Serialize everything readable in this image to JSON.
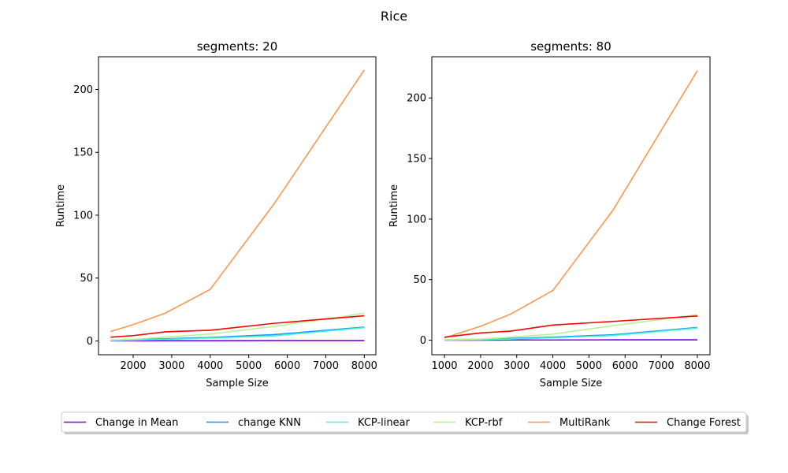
{
  "figure": {
    "suptitle": "Rice"
  },
  "legend": {
    "placement": "bottom-center",
    "entries": [
      "Change in Mean",
      "change KNN",
      "KCP-linear",
      "KCP-rbf",
      "MultiRank",
      "Change Forest"
    ]
  },
  "colors": {
    "Change in Mean": "#7f00ff",
    "change KNN": "#1996f3",
    "KCP-linear": "#4df3ce",
    "KCP-rbf": "#b2f396",
    "MultiRank": "#ff964f",
    "Change Forest": "#ff0000"
  },
  "chart_data": [
    {
      "type": "line",
      "title": "segments: 20",
      "xlabel": "Sample Size",
      "ylabel": "Runtime",
      "xlim": [
        1100,
        8300
      ],
      "ylim": [
        -11,
        226
      ],
      "xticks": [
        2000,
        3000,
        4000,
        5000,
        6000,
        7000,
        8000
      ],
      "yticks": [
        0,
        50,
        100,
        150,
        200
      ],
      "grid": false,
      "x": [
        1414,
        2000,
        2828,
        4000,
        5657,
        8000
      ],
      "series": [
        {
          "name": "Change in Mean",
          "values": [
            0.1,
            0.1,
            0.2,
            0.2,
            0.3,
            0.3
          ]
        },
        {
          "name": "change KNN",
          "values": [
            0.5,
            1.0,
            1.7,
            2.8,
            5.0,
            11.0
          ]
        },
        {
          "name": "KCP-linear",
          "values": [
            0.3,
            0.6,
            1.2,
            2.3,
            4.0,
            10.5
          ]
        },
        {
          "name": "KCP-rbf",
          "values": [
            0.6,
            1.3,
            3.0,
            5.5,
            11.5,
            22.0
          ]
        },
        {
          "name": "MultiRank",
          "values": [
            7.5,
            13.0,
            22.0,
            41.0,
            109.0,
            215.5
          ]
        },
        {
          "name": "Change Forest",
          "values": [
            3.0,
            4.2,
            7.2,
            8.5,
            14.0,
            20.0
          ]
        }
      ]
    },
    {
      "type": "line",
      "title": "segments: 80",
      "xlabel": "Sample Size",
      "ylabel": "Runtime",
      "xlim": [
        650,
        8350
      ],
      "ylim": [
        -12,
        234
      ],
      "xticks": [
        1000,
        2000,
        3000,
        4000,
        5000,
        6000,
        7000,
        8000
      ],
      "yticks": [
        0,
        50,
        100,
        150,
        200
      ],
      "grid": false,
      "x": [
        1000,
        2000,
        2828,
        4000,
        5657,
        8000
      ],
      "series": [
        {
          "name": "Change in Mean",
          "values": [
            0.1,
            0.1,
            0.2,
            0.2,
            0.3,
            0.3
          ]
        },
        {
          "name": "change KNN",
          "values": [
            0.3,
            0.7,
            1.5,
            2.5,
            4.5,
            10.5
          ]
        },
        {
          "name": "KCP-linear",
          "values": [
            0.2,
            0.5,
            1.0,
            2.0,
            3.8,
            10.0
          ]
        },
        {
          "name": "KCP-rbf",
          "values": [
            0.5,
            1.0,
            2.5,
            5.0,
            12.0,
            21.0
          ]
        },
        {
          "name": "MultiRank",
          "values": [
            2.0,
            11.5,
            21.5,
            41.0,
            107.0,
            222.5
          ]
        },
        {
          "name": "Change Forest",
          "values": [
            2.5,
            6.0,
            7.5,
            12.5,
            15.5,
            20.0
          ]
        }
      ]
    }
  ]
}
